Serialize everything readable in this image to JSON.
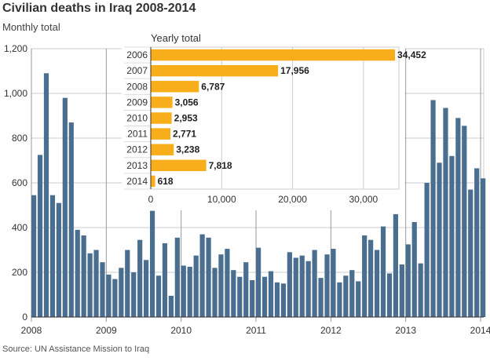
{
  "chart_data": [
    {
      "type": "bar",
      "title": "Civilian deaths in Iraq 2008-2014",
      "subtitle": "Monthly total",
      "source": "Source: UN Assistance Mission to Iraq",
      "x_tick_labels": [
        "2008",
        "2009",
        "2010",
        "2011",
        "2012",
        "2013",
        "2014"
      ],
      "y_ticks": [
        0,
        200,
        400,
        600,
        800,
        1000,
        1200
      ],
      "y_tick_labels": [
        "0",
        "200",
        "400",
        "600",
        "800",
        "1,000",
        "1,200"
      ],
      "ylim": [
        0,
        1200
      ],
      "grid": true,
      "bar_color": "#4a6e8f",
      "start": "2008-01",
      "values": [
        545,
        725,
        1090,
        545,
        510,
        980,
        870,
        390,
        365,
        285,
        300,
        245,
        190,
        170,
        220,
        300,
        200,
        345,
        255,
        475,
        185,
        330,
        95,
        355,
        230,
        225,
        275,
        370,
        355,
        220,
        280,
        305,
        210,
        180,
        245,
        165,
        310,
        180,
        205,
        155,
        150,
        290,
        265,
        275,
        250,
        300,
        175,
        280,
        305,
        155,
        185,
        210,
        160,
        365,
        345,
        300,
        405,
        195,
        460,
        235,
        325,
        425,
        240,
        600,
        970,
        690,
        935,
        720,
        890,
        855,
        570,
        665,
        620
      ]
    },
    {
      "type": "bar",
      "orientation": "horizontal",
      "title": "Yearly total",
      "bar_color": "#f7ae1a",
      "categories": [
        "2006",
        "2007",
        "2008",
        "2009",
        "2010",
        "2011",
        "2012",
        "2013",
        "2014"
      ],
      "values": [
        34452,
        17956,
        6787,
        3056,
        2953,
        2771,
        3238,
        7818,
        618
      ],
      "value_labels": [
        "34,452",
        "17,956",
        "6,787",
        "3,056",
        "2,953",
        "2,771",
        "3,238",
        "7,818",
        "618"
      ],
      "x_ticks": [
        0,
        10000,
        20000,
        30000
      ],
      "x_tick_labels": [
        "0",
        "10,000",
        "20,000",
        "30,000"
      ],
      "xlim": [
        0,
        35000
      ],
      "grid": true
    }
  ]
}
